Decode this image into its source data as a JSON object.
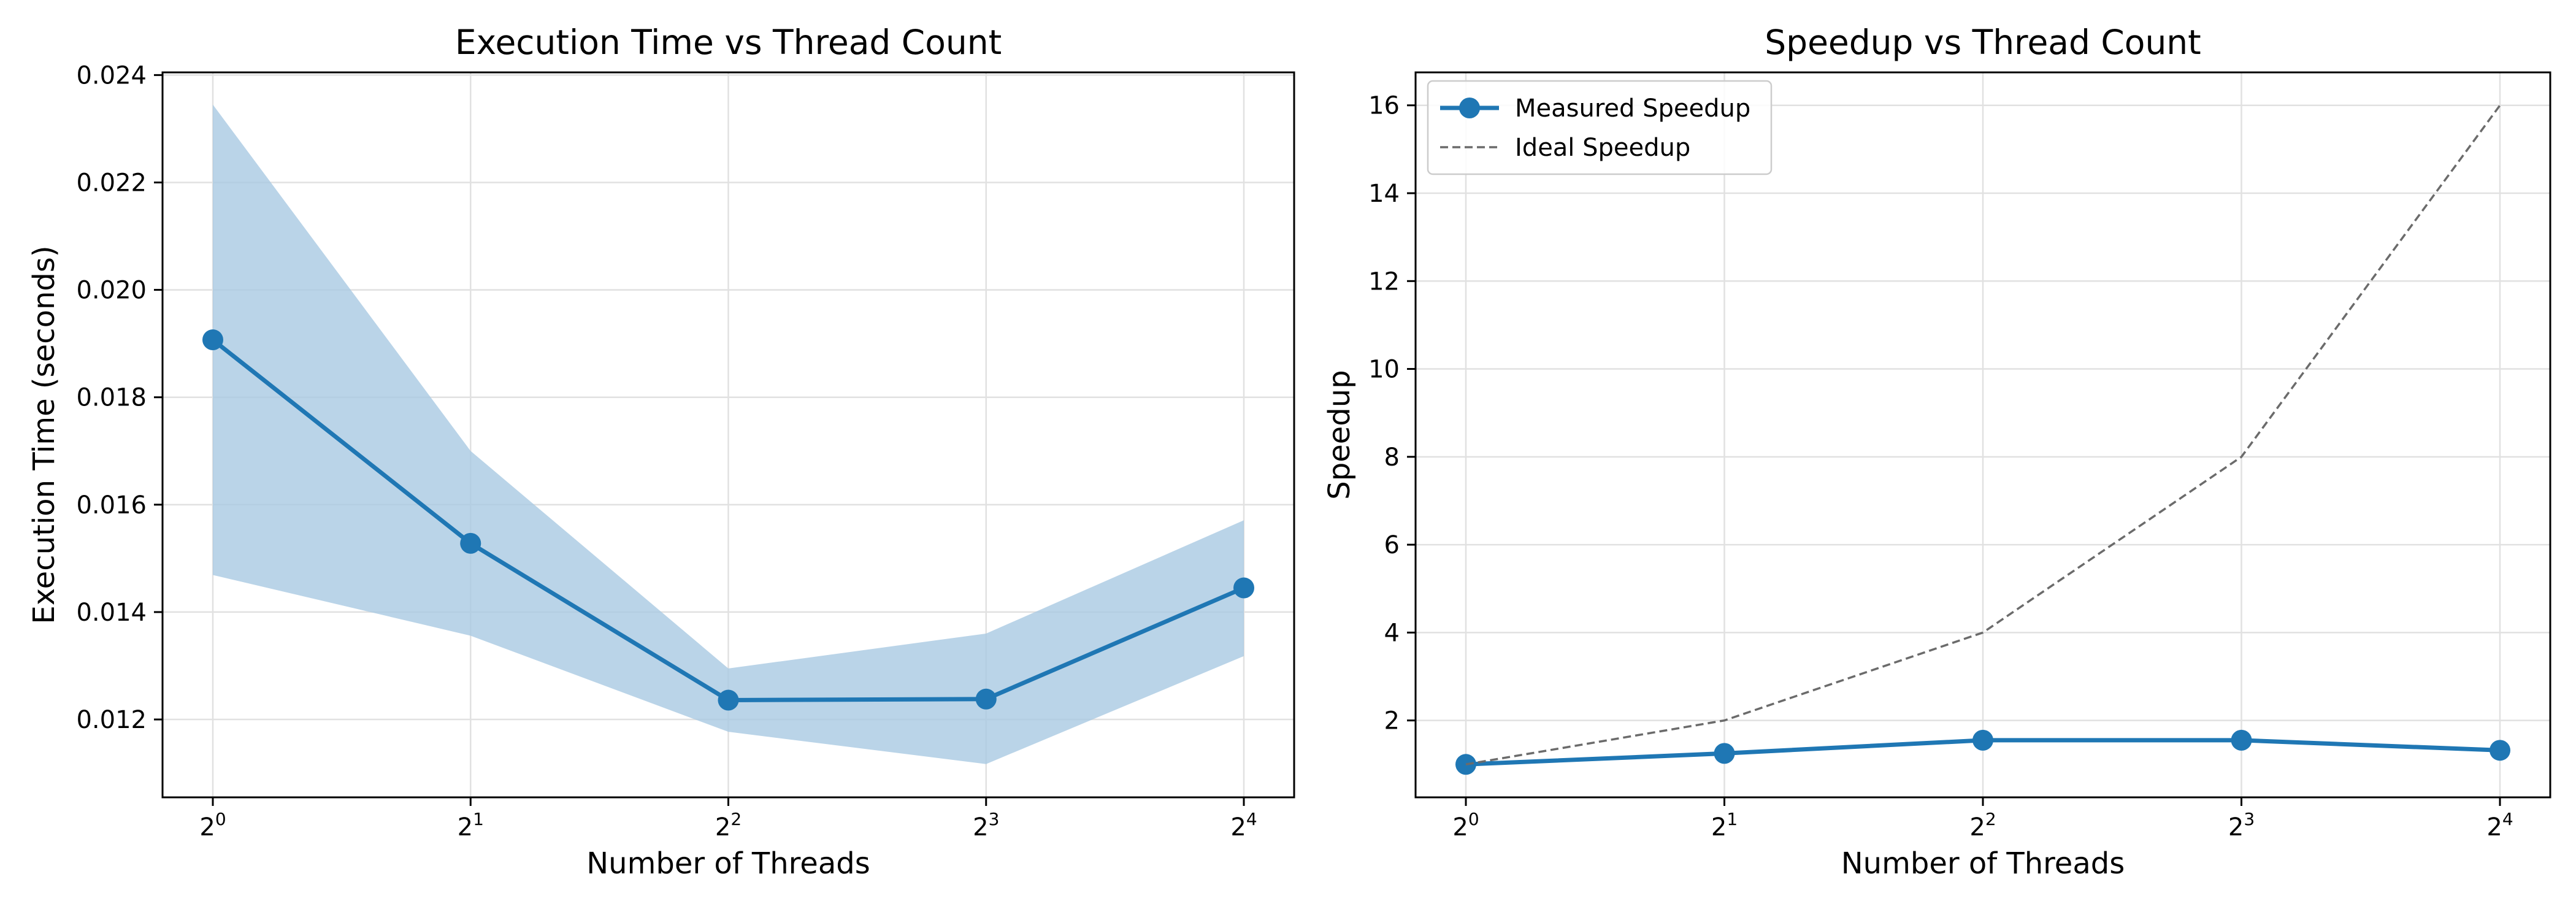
{
  "chart_data": [
    {
      "type": "line",
      "title": "Execution Time vs Thread Count",
      "xlabel": "Number of Threads",
      "ylabel": "Execution Time (seconds)",
      "x_scale": "log2",
      "x": [
        1,
        2,
        4,
        8,
        16
      ],
      "x_tick_labels": [
        {
          "base": "2",
          "exp": "0"
        },
        {
          "base": "2",
          "exp": "1"
        },
        {
          "base": "2",
          "exp": "2"
        },
        {
          "base": "2",
          "exp": "3"
        },
        {
          "base": "2",
          "exp": "4"
        }
      ],
      "ylim": [
        0.01055,
        0.02405
      ],
      "y_ticks": [
        0.012,
        0.014,
        0.016,
        0.018,
        0.02,
        0.022,
        0.024
      ],
      "y_tick_labels": [
        "0.012",
        "0.014",
        "0.016",
        "0.018",
        "0.020",
        "0.022",
        "0.024"
      ],
      "grid": true,
      "series": [
        {
          "values": [
            0.01907,
            0.01528,
            0.01236,
            0.01238,
            0.01445
          ],
          "band_upper": [
            0.02345,
            0.017,
            0.01295,
            0.0136,
            0.01571
          ],
          "band_lower": [
            0.01469,
            0.01356,
            0.01177,
            0.01117,
            0.01318
          ],
          "color": "#1f77b4",
          "band_color": "#a6c8e2",
          "marker": "circle"
        }
      ]
    },
    {
      "type": "line",
      "title": "Speedup vs Thread Count",
      "xlabel": "Number of Threads",
      "ylabel": "Speedup",
      "x_scale": "log2",
      "x": [
        1,
        2,
        4,
        8,
        16
      ],
      "x_tick_labels": [
        {
          "base": "2",
          "exp": "0"
        },
        {
          "base": "2",
          "exp": "1"
        },
        {
          "base": "2",
          "exp": "2"
        },
        {
          "base": "2",
          "exp": "3"
        },
        {
          "base": "2",
          "exp": "4"
        }
      ],
      "ylim": [
        0.25,
        16.75
      ],
      "y_ticks": [
        2,
        4,
        6,
        8,
        10,
        12,
        14,
        16
      ],
      "y_tick_labels": [
        "2",
        "4",
        "6",
        "8",
        "10",
        "12",
        "14",
        "16"
      ],
      "grid": true,
      "legend_position": "top-left",
      "series": [
        {
          "name": "Measured Speedup",
          "values": [
            1.0,
            1.25,
            1.55,
            1.55,
            1.32
          ],
          "color": "#1f77b4",
          "marker": "circle",
          "line_style": "solid"
        },
        {
          "name": "Ideal Speedup",
          "values": [
            1,
            2,
            4,
            8,
            16
          ],
          "color": "#6b6b6b",
          "marker": "none",
          "line_style": "dashed"
        }
      ]
    }
  ]
}
